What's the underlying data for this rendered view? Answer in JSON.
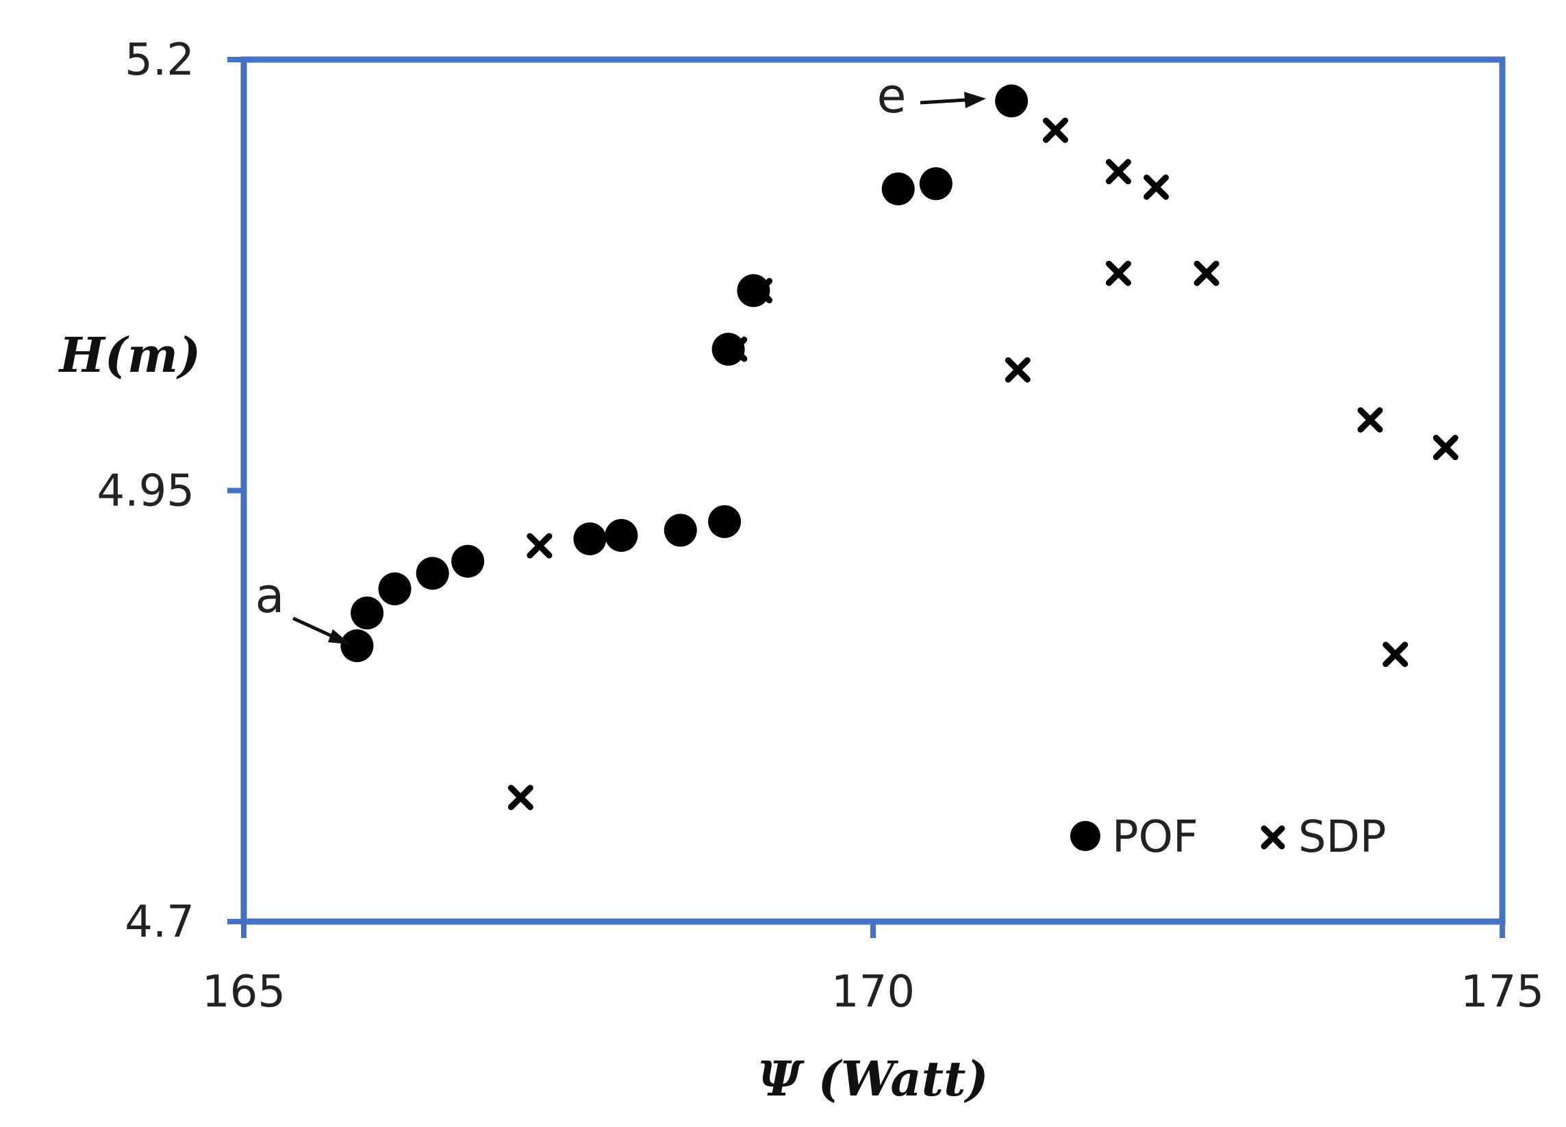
{
  "chart_data": {
    "type": "scatter",
    "title": "",
    "xlabel": "Ψ (Watt)",
    "ylabel": "H(m)",
    "xlim": [
      165,
      175
    ],
    "ylim": [
      4.7,
      5.2
    ],
    "xticks": [
      165,
      170,
      175
    ],
    "yticks": [
      4.7,
      4.95,
      5.2
    ],
    "x_tick_labels": [
      "165",
      "170",
      "175"
    ],
    "y_tick_labels": [
      "4.7",
      "4.95",
      "5.2"
    ],
    "grid": false,
    "legend_position": "bottom-right",
    "frame_color": "#4472c4",
    "series": [
      {
        "name": "POF",
        "marker": "circle",
        "color": "#000000",
        "points": [
          [
            165.9,
            4.86
          ],
          [
            165.98,
            4.879
          ],
          [
            166.2,
            4.893
          ],
          [
            166.5,
            4.902
          ],
          [
            166.78,
            4.909
          ],
          [
            167.75,
            4.922
          ],
          [
            168.0,
            4.924
          ],
          [
            168.47,
            4.927
          ],
          [
            168.82,
            4.932
          ],
          [
            168.85,
            5.032
          ],
          [
            169.05,
            5.066
          ],
          [
            170.2,
            5.125
          ],
          [
            170.5,
            5.128
          ],
          [
            171.1,
            5.176
          ]
        ]
      },
      {
        "name": "SDP",
        "marker": "x",
        "color": "#000000",
        "points": [
          [
            167.2,
            4.772
          ],
          [
            167.35,
            4.918
          ],
          [
            168.9,
            5.032
          ],
          [
            169.1,
            5.066
          ],
          [
            171.15,
            5.02
          ],
          [
            171.45,
            5.159
          ],
          [
            171.95,
            5.076
          ],
          [
            171.95,
            5.135
          ],
          [
            172.25,
            5.126
          ],
          [
            172.65,
            5.076
          ],
          [
            173.95,
            4.991
          ],
          [
            174.15,
            4.855
          ],
          [
            174.55,
            4.975
          ]
        ]
      }
    ],
    "annotations": [
      {
        "text": "a",
        "x": 165.9,
        "y": 4.86
      },
      {
        "text": "e",
        "x": 171.1,
        "y": 5.176
      }
    ]
  }
}
